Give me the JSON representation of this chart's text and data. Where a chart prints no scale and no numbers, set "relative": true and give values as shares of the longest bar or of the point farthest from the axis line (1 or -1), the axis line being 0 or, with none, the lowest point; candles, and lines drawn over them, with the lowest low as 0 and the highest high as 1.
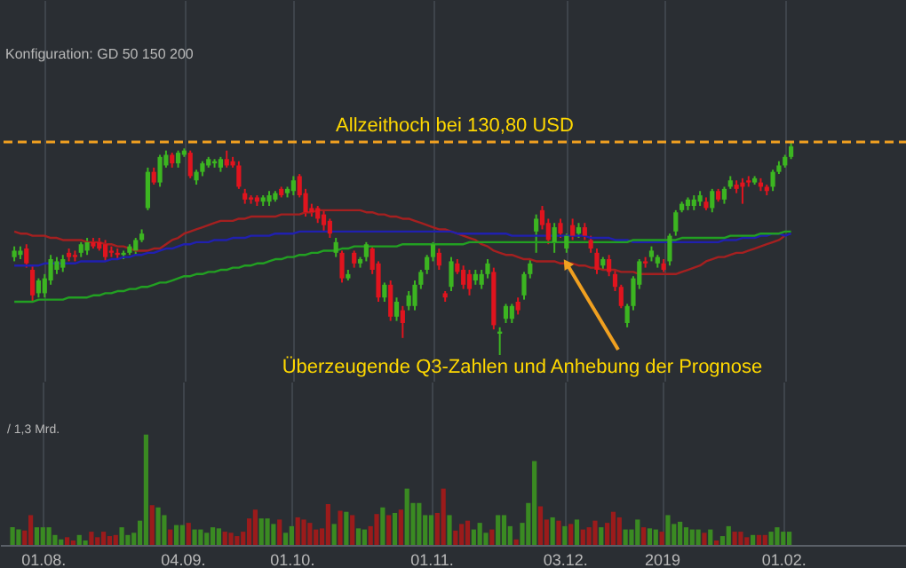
{
  "chart_data": [
    {
      "type": "candlestick",
      "subtitle": "Konfiguration: GD 50 150 200",
      "relative": true,
      "tick_labels": false,
      "grid": "x",
      "categories": [
        null,
        null,
        null,
        null,
        null,
        "01.08.",
        null,
        null,
        null,
        null,
        null,
        null,
        null,
        null,
        null,
        null,
        null,
        null,
        null,
        null,
        null,
        null,
        null,
        null,
        null,
        null,
        null,
        null,
        "04.09.",
        null,
        null,
        null,
        null,
        null,
        null,
        null,
        null,
        null,
        null,
        null,
        null,
        null,
        null,
        null,
        null,
        null,
        "01.10.",
        null,
        null,
        null,
        null,
        null,
        null,
        null,
        null,
        null,
        null,
        null,
        null,
        null,
        null,
        null,
        null,
        null,
        null,
        null,
        null,
        null,
        null,
        "01.11.",
        null,
        null,
        null,
        null,
        null,
        null,
        null,
        null,
        null,
        null,
        null,
        null,
        null,
        null,
        null,
        null,
        null,
        null,
        null,
        null,
        null,
        "03.12.",
        null,
        null,
        null,
        null,
        null,
        null,
        null,
        null,
        null,
        null,
        null,
        null,
        null,
        null,
        null,
        "2019",
        null,
        null,
        null,
        null,
        null,
        null,
        null,
        null,
        null,
        null,
        null,
        null,
        null,
        null,
        null,
        null,
        null,
        null,
        null,
        "01.02.",
        null
      ],
      "ohlc": [
        [
          0.46,
          0.51,
          0.44,
          0.49
        ],
        [
          0.47,
          0.51,
          0.45,
          0.49
        ],
        [
          0.5,
          0.52,
          0.41,
          0.43
        ],
        [
          0.4,
          0.42,
          0.25,
          0.28
        ],
        [
          0.29,
          0.36,
          0.27,
          0.35
        ],
        [
          0.29,
          0.38,
          0.27,
          0.36
        ],
        [
          0.35,
          0.47,
          0.33,
          0.45
        ],
        [
          0.4,
          0.46,
          0.38,
          0.44
        ],
        [
          0.41,
          0.47,
          0.39,
          0.45
        ],
        [
          0.48,
          0.5,
          0.44,
          0.46
        ],
        [
          0.47,
          0.49,
          0.44,
          0.46
        ],
        [
          0.48,
          0.53,
          0.46,
          0.52
        ],
        [
          0.49,
          0.55,
          0.47,
          0.53
        ],
        [
          0.53,
          0.55,
          0.5,
          0.51
        ],
        [
          0.53,
          0.55,
          0.49,
          0.5
        ],
        [
          0.52,
          0.54,
          0.44,
          0.46
        ],
        [
          0.49,
          0.51,
          0.46,
          0.48
        ],
        [
          0.48,
          0.5,
          0.45,
          0.47
        ],
        [
          0.47,
          0.49,
          0.45,
          0.48
        ],
        [
          0.48,
          0.52,
          0.47,
          0.51
        ],
        [
          0.49,
          0.55,
          0.47,
          0.54
        ],
        [
          0.54,
          0.59,
          0.53,
          0.57
        ],
        [
          0.69,
          0.88,
          0.68,
          0.86
        ],
        [
          0.86,
          0.88,
          0.8,
          0.81
        ],
        [
          0.81,
          0.94,
          0.79,
          0.93
        ],
        [
          0.89,
          0.96,
          0.88,
          0.94
        ],
        [
          0.94,
          0.95,
          0.88,
          0.9
        ],
        [
          0.9,
          0.96,
          0.88,
          0.95
        ],
        [
          0.94,
          0.97,
          0.93,
          0.96
        ],
        [
          0.95,
          0.96,
          0.83,
          0.84
        ],
        [
          0.82,
          0.87,
          0.8,
          0.86
        ],
        [
          0.86,
          0.91,
          0.84,
          0.9
        ],
        [
          0.89,
          0.93,
          0.88,
          0.92
        ],
        [
          0.9,
          0.92,
          0.88,
          0.91
        ],
        [
          0.88,
          0.93,
          0.86,
          0.92
        ],
        [
          0.92,
          0.96,
          0.88,
          0.89
        ],
        [
          0.91,
          0.93,
          0.88,
          0.89
        ],
        [
          0.89,
          0.91,
          0.78,
          0.79
        ],
        [
          0.76,
          0.78,
          0.71,
          0.73
        ],
        [
          0.74,
          0.75,
          0.71,
          0.73
        ],
        [
          0.74,
          0.75,
          0.7,
          0.72
        ],
        [
          0.72,
          0.75,
          0.7,
          0.74
        ],
        [
          0.72,
          0.77,
          0.7,
          0.75
        ],
        [
          0.73,
          0.77,
          0.72,
          0.76
        ],
        [
          0.78,
          0.79,
          0.74,
          0.75
        ],
        [
          0.76,
          0.79,
          0.74,
          0.78
        ],
        [
          0.77,
          0.84,
          0.75,
          0.82
        ],
        [
          0.84,
          0.85,
          0.74,
          0.75
        ],
        [
          0.76,
          0.78,
          0.65,
          0.67
        ],
        [
          0.69,
          0.71,
          0.65,
          0.67
        ],
        [
          0.69,
          0.7,
          0.62,
          0.64
        ],
        [
          0.66,
          0.68,
          0.58,
          0.61
        ],
        [
          0.63,
          0.64,
          0.55,
          0.57
        ],
        [
          0.48,
          0.55,
          0.46,
          0.53
        ],
        [
          0.48,
          0.49,
          0.34,
          0.36
        ],
        [
          0.36,
          0.4,
          0.35,
          0.38
        ],
        [
          0.48,
          0.49,
          0.41,
          0.43
        ],
        [
          0.43,
          0.46,
          0.41,
          0.45
        ],
        [
          0.46,
          0.53,
          0.44,
          0.52
        ],
        [
          0.5,
          0.51,
          0.38,
          0.4
        ],
        [
          0.43,
          0.44,
          0.25,
          0.27
        ],
        [
          0.27,
          0.34,
          0.25,
          0.33
        ],
        [
          0.33,
          0.35,
          0.16,
          0.18
        ],
        [
          0.18,
          0.27,
          0.16,
          0.25
        ],
        [
          0.21,
          0.23,
          0.08,
          0.15
        ],
        [
          0.23,
          0.3,
          0.21,
          0.28
        ],
        [
          0.23,
          0.35,
          0.21,
          0.33
        ],
        [
          0.33,
          0.4,
          0.31,
          0.39
        ],
        [
          0.4,
          0.47,
          0.38,
          0.46
        ],
        [
          0.46,
          0.53,
          0.44,
          0.52
        ],
        [
          0.48,
          0.5,
          0.4,
          0.42
        ],
        [
          0.29,
          0.3,
          0.25,
          0.27
        ],
        [
          0.32,
          0.46,
          0.3,
          0.44
        ],
        [
          0.43,
          0.45,
          0.38,
          0.39
        ],
        [
          0.4,
          0.42,
          0.31,
          0.33
        ],
        [
          0.38,
          0.4,
          0.28,
          0.31
        ],
        [
          0.35,
          0.4,
          0.33,
          0.38
        ],
        [
          0.33,
          0.4,
          0.31,
          0.38
        ],
        [
          0.38,
          0.45,
          0.36,
          0.43
        ],
        [
          0.39,
          0.41,
          0.12,
          0.14
        ],
        [
          0.1,
          0.13,
          0,
          0.11
        ],
        [
          0.17,
          0.24,
          0.15,
          0.23
        ],
        [
          0.17,
          0.24,
          0.15,
          0.23
        ],
        [
          0.25,
          0.27,
          0.19,
          0.21
        ],
        [
          0.28,
          0.39,
          0.26,
          0.38
        ],
        [
          0.38,
          0.45,
          0.36,
          0.43
        ],
        [
          0.58,
          0.66,
          0.48,
          0.64
        ],
        [
          0.68,
          0.7,
          0.59,
          0.61
        ],
        [
          0.62,
          0.64,
          0.52,
          0.54
        ],
        [
          0.53,
          0.62,
          0.48,
          0.6
        ],
        [
          0.62,
          0.64,
          0.55,
          0.57
        ],
        [
          0.5,
          0.57,
          0.48,
          0.56
        ],
        [
          0.61,
          0.64,
          0.54,
          0.56
        ],
        [
          0.57,
          0.62,
          0.55,
          0.6
        ],
        [
          0.6,
          0.62,
          0.54,
          0.56
        ],
        [
          0.54,
          0.56,
          0.48,
          0.5
        ],
        [
          0.48,
          0.5,
          0.38,
          0.4
        ],
        [
          0.42,
          0.46,
          0.4,
          0.45
        ],
        [
          0.45,
          0.47,
          0.37,
          0.39
        ],
        [
          0.38,
          0.4,
          0.3,
          0.32
        ],
        [
          0.32,
          0.33,
          0.22,
          0.23
        ],
        [
          0.15,
          0.24,
          0.13,
          0.23
        ],
        [
          0.23,
          0.37,
          0.21,
          0.36
        ],
        [
          0.33,
          0.45,
          0.31,
          0.44
        ],
        [
          0.44,
          0.46,
          0.41,
          0.43
        ],
        [
          0.46,
          0.51,
          0.44,
          0.49
        ],
        [
          0.43,
          0.47,
          0.41,
          0.46
        ],
        [
          0.43,
          0.45,
          0.39,
          0.4
        ],
        [
          0.44,
          0.57,
          0.42,
          0.56
        ],
        [
          0.58,
          0.68,
          0.56,
          0.67
        ],
        [
          0.68,
          0.72,
          0.67,
          0.71
        ],
        [
          0.7,
          0.74,
          0.68,
          0.73
        ],
        [
          0.7,
          0.75,
          0.68,
          0.73
        ],
        [
          0.72,
          0.77,
          0.7,
          0.75
        ],
        [
          0.72,
          0.74,
          0.68,
          0.69
        ],
        [
          0.69,
          0.78,
          0.67,
          0.77
        ],
        [
          0.77,
          0.78,
          0.72,
          0.73
        ],
        [
          0.73,
          0.79,
          0.71,
          0.78
        ],
        [
          0.79,
          0.84,
          0.78,
          0.82
        ],
        [
          0.8,
          0.82,
          0.76,
          0.78
        ],
        [
          0.81,
          0.83,
          0.71,
          0.79
        ],
        [
          0.82,
          0.84,
          0.79,
          0.81
        ],
        [
          0.81,
          0.84,
          0.8,
          0.83
        ],
        [
          0.81,
          0.83,
          0.77,
          0.79
        ],
        [
          0.79,
          0.8,
          0.75,
          0.77
        ],
        [
          0.79,
          0.87,
          0.77,
          0.86
        ],
        [
          0.86,
          0.91,
          0.85,
          0.89
        ],
        [
          0.89,
          0.94,
          0.88,
          0.93
        ],
        [
          0.93,
          1,
          0.92,
          0.98
        ]
      ],
      "colors": [
        "#3cb521",
        "#3cb521",
        "#e0141e",
        "#e0141e",
        "#3cb521",
        "#3cb521",
        "#3cb521",
        "#3cb521",
        "#3cb521",
        "#e0141e",
        "#e0141e",
        "#3cb521",
        "#3cb521",
        "#e0141e",
        "#e0141e",
        "#e0141e",
        "#e0141e",
        "#e0141e",
        "#3cb521",
        "#3cb521",
        "#3cb521",
        "#3cb521",
        "#3cb521",
        "#e0141e",
        "#3cb521",
        "#3cb521",
        "#e0141e",
        "#3cb521",
        "#3cb521",
        "#e0141e",
        "#3cb521",
        "#3cb521",
        "#3cb521",
        "#3cb521",
        "#3cb521",
        "#e0141e",
        "#e0141e",
        "#e0141e",
        "#e0141e",
        "#e0141e",
        "#e0141e",
        "#3cb521",
        "#3cb521",
        "#3cb521",
        "#e0141e",
        "#3cb521",
        "#3cb521",
        "#e0141e",
        "#e0141e",
        "#e0141e",
        "#e0141e",
        "#e0141e",
        "#e0141e",
        "#3cb521",
        "#e0141e",
        "#3cb521",
        "#e0141e",
        "#3cb521",
        "#3cb521",
        "#e0141e",
        "#e0141e",
        "#3cb521",
        "#e0141e",
        "#3cb521",
        "#e0141e",
        "#3cb521",
        "#3cb521",
        "#3cb521",
        "#3cb521",
        "#3cb521",
        "#e0141e",
        "#e0141e",
        "#3cb521",
        "#e0141e",
        "#e0141e",
        "#e0141e",
        "#3cb521",
        "#3cb521",
        "#3cb521",
        "#e0141e",
        "#3cb521",
        "#3cb521",
        "#3cb521",
        "#e0141e",
        "#3cb521",
        "#3cb521",
        "#3cb521",
        "#e0141e",
        "#e0141e",
        "#3cb521",
        "#e0141e",
        "#3cb521",
        "#e0141e",
        "#3cb521",
        "#e0141e",
        "#e0141e",
        "#e0141e",
        "#3cb521",
        "#e0141e",
        "#e0141e",
        "#e0141e",
        "#3cb521",
        "#3cb521",
        "#3cb521",
        "#e0141e",
        "#3cb521",
        "#3cb521",
        "#e0141e",
        "#3cb521",
        "#3cb521",
        "#3cb521",
        "#3cb521",
        "#3cb521",
        "#3cb521",
        "#e0141e",
        "#3cb521",
        "#e0141e",
        "#3cb521",
        "#3cb521",
        "#e0141e",
        "#e0141e",
        "#e0141e",
        "#3cb521",
        "#e0141e",
        "#e0141e",
        "#3cb521",
        "#3cb521",
        "#3cb521",
        "#3cb521"
      ],
      "series": [
        {
          "type": "line",
          "color": "#a52020",
          "values": [
            0.58,
            0.57,
            0.57,
            0.56,
            0.56,
            0.56,
            0.55,
            0.55,
            0.54,
            0.54,
            0.54,
            0.54,
            0.53,
            0.53,
            0.53,
            0.52,
            0.52,
            0.51,
            0.51,
            0.5,
            0.49,
            0.49,
            0.49,
            0.5,
            0.5,
            0.52,
            0.54,
            0.55,
            0.57,
            0.58,
            0.59,
            0.6,
            0.61,
            0.62,
            0.63,
            0.63,
            0.63,
            0.64,
            0.64,
            0.65,
            0.65,
            0.65,
            0.65,
            0.65,
            0.66,
            0.66,
            0.66,
            0.66,
            0.67,
            0.67,
            0.68,
            0.68,
            0.68,
            0.68,
            0.68,
            0.68,
            0.68,
            0.68,
            0.67,
            0.67,
            0.66,
            0.66,
            0.65,
            0.65,
            0.64,
            0.64,
            0.63,
            0.62,
            0.61,
            0.6,
            0.59,
            0.59,
            0.58,
            0.57,
            0.56,
            0.55,
            0.54,
            0.52,
            0.51,
            0.49,
            0.48,
            0.47,
            0.47,
            0.46,
            0.45,
            0.45,
            0.44,
            0.44,
            0.44,
            0.44,
            0.43,
            0.43,
            0.43,
            0.42,
            0.42,
            0.41,
            0.41,
            0.4,
            0.4,
            0.4,
            0.39,
            0.39,
            0.39,
            0.38,
            0.38,
            0.38,
            0.38,
            0.38,
            0.38,
            0.38,
            0.39,
            0.4,
            0.41,
            0.42,
            0.44,
            0.45,
            0.46,
            0.46,
            0.47,
            0.48,
            0.48,
            0.49,
            0.5,
            0.51,
            0.52,
            0.53,
            0.54,
            0.56,
            null
          ]
        },
        {
          "type": "line",
          "color": "#2020b0",
          "values": [
            0.42,
            0.42,
            0.42,
            0.42,
            0.42,
            0.43,
            0.43,
            0.43,
            0.43,
            0.43,
            0.43,
            0.44,
            0.44,
            0.44,
            0.44,
            0.44,
            0.45,
            0.45,
            0.46,
            0.46,
            0.47,
            0.47,
            0.48,
            0.48,
            0.49,
            0.5,
            0.5,
            0.51,
            0.52,
            0.52,
            0.53,
            0.53,
            0.53,
            0.54,
            0.54,
            0.54,
            0.55,
            0.55,
            0.55,
            0.56,
            0.56,
            0.56,
            0.56,
            0.57,
            0.57,
            0.57,
            0.57,
            0.58,
            0.58,
            0.58,
            0.58,
            0.58,
            0.58,
            0.58,
            0.58,
            0.58,
            0.58,
            0.58,
            0.58,
            0.58,
            0.58,
            0.58,
            0.58,
            0.58,
            0.58,
            0.58,
            0.58,
            0.58,
            0.58,
            0.58,
            0.58,
            0.58,
            0.58,
            0.57,
            0.57,
            0.57,
            0.57,
            0.57,
            0.57,
            0.57,
            0.57,
            0.57,
            0.56,
            0.56,
            0.56,
            0.56,
            0.56,
            0.56,
            0.56,
            0.56,
            0.56,
            0.56,
            0.56,
            0.56,
            0.56,
            0.55,
            0.55,
            0.55,
            0.55,
            0.54,
            0.54,
            0.54,
            0.53,
            0.53,
            0.53,
            0.53,
            0.53,
            0.53,
            0.53,
            0.53,
            0.53,
            0.53,
            0.53,
            0.53,
            0.53,
            0.53,
            0.53,
            0.54,
            0.54,
            0.54,
            0.55,
            0.55,
            0.55,
            0.56,
            0.56,
            0.57,
            0.57,
            0.56,
            0.57
          ]
        },
        {
          "type": "line",
          "color": "#22a022",
          "values": [
            0.25,
            0.25,
            0.25,
            0.25,
            0.26,
            0.26,
            0.26,
            0.26,
            0.26,
            0.27,
            0.27,
            0.27,
            0.27,
            0.28,
            0.28,
            0.29,
            0.29,
            0.3,
            0.3,
            0.31,
            0.31,
            0.32,
            0.32,
            0.33,
            0.34,
            0.34,
            0.35,
            0.36,
            0.37,
            0.37,
            0.38,
            0.38,
            0.39,
            0.39,
            0.4,
            0.4,
            0.41,
            0.41,
            0.42,
            0.42,
            0.43,
            0.43,
            0.44,
            0.45,
            0.45,
            0.46,
            0.46,
            0.47,
            0.47,
            0.48,
            0.48,
            0.49,
            0.49,
            0.49,
            0.5,
            0.5,
            0.51,
            0.51,
            0.51,
            0.51,
            0.51,
            0.51,
            0.51,
            0.51,
            0.52,
            0.52,
            0.52,
            0.52,
            0.52,
            0.52,
            0.52,
            0.52,
            0.52,
            0.52,
            0.52,
            0.53,
            0.53,
            0.53,
            0.53,
            0.53,
            0.53,
            0.53,
            0.53,
            0.53,
            0.53,
            0.53,
            0.53,
            0.53,
            0.53,
            0.53,
            0.53,
            0.53,
            0.53,
            0.53,
            0.53,
            0.53,
            0.53,
            0.53,
            0.53,
            0.53,
            0.53,
            0.53,
            0.54,
            0.54,
            0.54,
            0.54,
            0.54,
            0.54,
            0.54,
            0.54,
            0.55,
            0.55,
            0.55,
            0.55,
            0.55,
            0.55,
            0.55,
            0.55,
            0.56,
            0.56,
            0.56,
            0.56,
            0.56,
            0.57,
            0.57,
            0.57,
            0.57,
            0.58,
            0.58
          ]
        }
      ],
      "ref_lines": [
        {
          "axis": "y",
          "value": 1,
          "label": "Allzeithoch bei 130,80 USD",
          "color": "#f0a020",
          "line_style": "dashed"
        }
      ],
      "annotations": [
        {
          "text": "Überzeugende Q3-Zahlen und Anhebung der Prognose",
          "x": "03.12.",
          "y": 0.43
        }
      ]
    },
    {
      "type": "bar",
      "relative": true,
      "tick_labels": "x",
      "grid": "x",
      "categories": [
        null,
        null,
        null,
        null,
        null,
        "01.08.",
        null,
        null,
        null,
        null,
        null,
        null,
        null,
        null,
        null,
        null,
        null,
        null,
        null,
        null,
        null,
        null,
        null,
        null,
        null,
        null,
        null,
        null,
        "04.09.",
        null,
        null,
        null,
        null,
        null,
        null,
        null,
        null,
        null,
        null,
        null,
        null,
        null,
        null,
        null,
        null,
        null,
        "01.10.",
        null,
        null,
        null,
        null,
        null,
        null,
        null,
        null,
        null,
        null,
        null,
        null,
        null,
        null,
        null,
        null,
        null,
        null,
        null,
        null,
        null,
        null,
        "01.11.",
        null,
        null,
        null,
        null,
        null,
        null,
        null,
        null,
        null,
        null,
        null,
        null,
        null,
        null,
        null,
        null,
        null,
        null,
        null,
        null,
        null,
        "03.12.",
        null,
        null,
        null,
        null,
        null,
        null,
        null,
        null,
        null,
        null,
        null,
        null,
        null,
        null,
        null,
        "2019",
        null,
        null,
        null,
        null,
        null,
        null,
        null,
        null,
        null,
        null,
        null,
        null,
        null,
        null,
        null,
        null,
        null,
        null,
        null,
        "01.02.",
        null
      ],
      "annotations": [
        "/ 1,3 Mrd."
      ],
      "values": [
        0.16,
        0.14,
        0.13,
        0.27,
        0.16,
        0.16,
        0.16,
        0.09,
        0.05,
        0.07,
        0.04,
        0.09,
        0.04,
        0.12,
        0.07,
        0.12,
        0.08,
        0.09,
        0.16,
        0.09,
        0.11,
        0.22,
        1,
        0.36,
        0.34,
        0.27,
        0.14,
        0.18,
        0.18,
        0.2,
        0.14,
        0.14,
        0.11,
        0.16,
        0.15,
        0.12,
        0.11,
        0.08,
        0.12,
        0.24,
        0.32,
        0.24,
        0.24,
        0.19,
        0.23,
        0.11,
        0.17,
        0.25,
        0.23,
        0.2,
        0.14,
        0.15,
        0.37,
        0.19,
        0.31,
        0.3,
        0.27,
        0.15,
        0.14,
        0.17,
        0.28,
        0.34,
        0.27,
        0.29,
        0.32,
        0.51,
        0.38,
        0.38,
        0.27,
        0.27,
        0.29,
        0.51,
        0.27,
        0.13,
        0.19,
        0.22,
        0.14,
        0.2,
        0.11,
        0.14,
        0.27,
        0.27,
        0.17,
        0.05,
        0.2,
        0.38,
        0.76,
        0.35,
        0.23,
        0.25,
        0.22,
        0.17,
        0.19,
        0.23,
        0.14,
        0.16,
        0.22,
        0.16,
        0.2,
        0.3,
        0.25,
        0.14,
        0.14,
        0.23,
        0.16,
        0.15,
        0.14,
        0.12,
        0.27,
        0.19,
        0.21,
        0.16,
        0.14,
        0.14,
        0.11,
        0.14,
        0.04,
        0.08,
        0.17,
        0.12,
        0.12,
        0.07,
        0.09,
        0.09,
        0.09,
        0.12,
        0.16,
        0.12,
        0.12
      ],
      "colors": [
        "#3a8a22",
        "#3a8a22",
        "#9b1b1b",
        "#9b1b1b",
        "#3a8a22",
        "#3a8a22",
        "#3a8a22",
        "#3a8a22",
        "#3a8a22",
        "#9b1b1b",
        "#9b1b1b",
        "#3a8a22",
        "#3a8a22",
        "#9b1b1b",
        "#9b1b1b",
        "#9b1b1b",
        "#9b1b1b",
        "#9b1b1b",
        "#3a8a22",
        "#3a8a22",
        "#3a8a22",
        "#3a8a22",
        "#3a8a22",
        "#9b1b1b",
        "#3a8a22",
        "#3a8a22",
        "#9b1b1b",
        "#3a8a22",
        "#3a8a22",
        "#9b1b1b",
        "#3a8a22",
        "#3a8a22",
        "#3a8a22",
        "#3a8a22",
        "#3a8a22",
        "#9b1b1b",
        "#9b1b1b",
        "#9b1b1b",
        "#9b1b1b",
        "#9b1b1b",
        "#9b1b1b",
        "#3a8a22",
        "#3a8a22",
        "#3a8a22",
        "#9b1b1b",
        "#3a8a22",
        "#3a8a22",
        "#9b1b1b",
        "#9b1b1b",
        "#9b1b1b",
        "#9b1b1b",
        "#9b1b1b",
        "#9b1b1b",
        "#3a8a22",
        "#9b1b1b",
        "#3a8a22",
        "#9b1b1b",
        "#3a8a22",
        "#3a8a22",
        "#9b1b1b",
        "#9b1b1b",
        "#3a8a22",
        "#9b1b1b",
        "#3a8a22",
        "#9b1b1b",
        "#3a8a22",
        "#3a8a22",
        "#3a8a22",
        "#3a8a22",
        "#3a8a22",
        "#9b1b1b",
        "#9b1b1b",
        "#3a8a22",
        "#9b1b1b",
        "#9b1b1b",
        "#9b1b1b",
        "#3a8a22",
        "#3a8a22",
        "#3a8a22",
        "#9b1b1b",
        "#3a8a22",
        "#3a8a22",
        "#3a8a22",
        "#9b1b1b",
        "#3a8a22",
        "#3a8a22",
        "#3a8a22",
        "#9b1b1b",
        "#9b1b1b",
        "#3a8a22",
        "#9b1b1b",
        "#3a8a22",
        "#9b1b1b",
        "#3a8a22",
        "#9b1b1b",
        "#9b1b1b",
        "#9b1b1b",
        "#3a8a22",
        "#9b1b1b",
        "#9b1b1b",
        "#9b1b1b",
        "#3a8a22",
        "#3a8a22",
        "#3a8a22",
        "#9b1b1b",
        "#3a8a22",
        "#3a8a22",
        "#9b1b1b",
        "#3a8a22",
        "#3a8a22",
        "#3a8a22",
        "#3a8a22",
        "#3a8a22",
        "#3a8a22",
        "#9b1b1b",
        "#3a8a22",
        "#9b1b1b",
        "#3a8a22",
        "#3a8a22",
        "#9b1b1b",
        "#9b1b1b",
        "#9b1b1b",
        "#3a8a22",
        "#9b1b1b",
        "#9b1b1b",
        "#3a8a22",
        "#3a8a22",
        "#3a8a22",
        "#3a8a22"
      ]
    }
  ]
}
